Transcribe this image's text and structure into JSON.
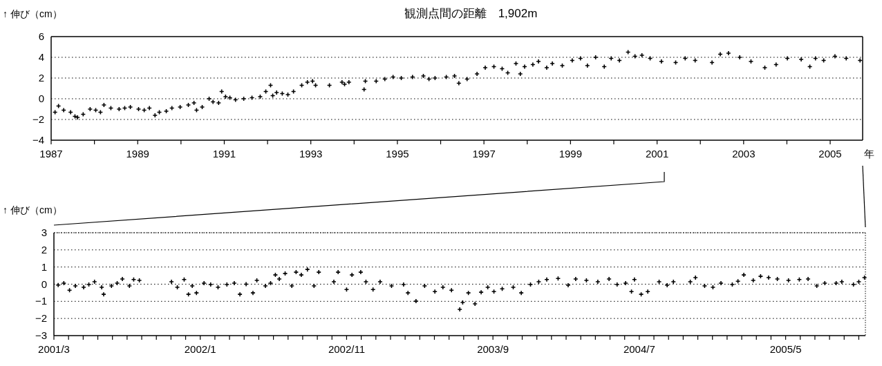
{
  "chart_data": [
    {
      "type": "scatter",
      "title": "観測点間の距離　1,902m",
      "ylabel": "↑ 伸び（cm）",
      "xlabel": "年",
      "marker": "cross",
      "grid": "y",
      "xlim": [
        1987,
        2005.75
      ],
      "ylim": [
        -4,
        6
      ],
      "yticks": [
        -4,
        -2,
        0,
        2,
        4,
        6
      ],
      "xticks": [
        1987,
        {
          "value": 1988,
          "label": null
        },
        1989,
        {
          "value": 1990,
          "label": null
        },
        1991,
        {
          "value": 1992,
          "label": null
        },
        1993,
        {
          "value": 1994,
          "label": null
        },
        1995,
        {
          "value": 1996,
          "label": null
        },
        1997,
        {
          "value": 1998,
          "label": null
        },
        1999,
        {
          "value": 2000,
          "label": null
        },
        2001,
        {
          "value": 2002,
          "label": null
        },
        2003,
        {
          "value": 2004,
          "label": null
        },
        2005
      ],
      "series": [
        {
          "color": "#000000",
          "x": [
            1987.09,
            1987.17,
            1987.29,
            1987.45,
            1987.55,
            1987.61,
            1987.74,
            1987.9,
            1988.03,
            1988.14,
            1988.22,
            1988.38,
            1988.57,
            1988.7,
            1988.83,
            1989.02,
            1989.15,
            1989.27,
            1989.4,
            1989.5,
            1989.66,
            1989.79,
            1989.98,
            1990.17,
            1990.3,
            1990.36,
            1990.49,
            1990.65,
            1990.74,
            1990.87,
            1990.94,
            1991.03,
            1991.13,
            1991.26,
            1991.45,
            1991.64,
            1991.83,
            1991.96,
            1992.07,
            1992.12,
            1992.21,
            1992.34,
            1992.47,
            1992.6,
            1992.79,
            1992.92,
            1993.04,
            1993.11,
            1993.43,
            1993.72,
            1993.78,
            1993.88,
            1994.23,
            1994.26,
            1994.51,
            1994.71,
            1994.9,
            1995.09,
            1995.35,
            1995.6,
            1995.73,
            1995.87,
            1996.13,
            1996.32,
            1996.42,
            1996.61,
            1996.84,
            1997.03,
            1997.23,
            1997.42,
            1997.55,
            1997.74,
            1997.84,
            1997.94,
            1998.13,
            1998.26,
            1998.45,
            1998.58,
            1998.81,
            1999.04,
            1999.23,
            1999.39,
            1999.58,
            1999.78,
            1999.94,
            2000.13,
            2000.33,
            2000.49,
            2000.65,
            2000.84,
            2001.1,
            2001.43,
            2001.65,
            2001.88,
            2002.27,
            2002.46,
            2002.65,
            2002.91,
            2003.17,
            2003.49,
            2003.75,
            2004.01,
            2004.33,
            2004.53,
            2004.66,
            2004.85,
            2005.11,
            2005.37,
            2005.69
          ],
          "values": [
            -1.3,
            -0.7,
            -1.1,
            -1.3,
            -1.7,
            -1.8,
            -1.5,
            -1.0,
            -1.1,
            -1.3,
            -0.6,
            -0.9,
            -1.0,
            -0.9,
            -0.8,
            -1.0,
            -1.1,
            -0.9,
            -1.6,
            -1.3,
            -1.2,
            -0.9,
            -0.8,
            -0.6,
            -0.4,
            -1.1,
            -0.8,
            0.0,
            -0.3,
            -0.4,
            0.7,
            0.2,
            0.1,
            -0.1,
            0.0,
            0.1,
            0.2,
            0.7,
            1.3,
            0.3,
            0.6,
            0.5,
            0.4,
            0.7,
            1.3,
            1.6,
            1.7,
            1.3,
            1.3,
            1.6,
            1.4,
            1.6,
            0.9,
            1.7,
            1.7,
            1.9,
            2.1,
            2.0,
            2.1,
            2.2,
            1.9,
            2.0,
            2.1,
            2.2,
            1.5,
            1.9,
            2.4,
            3.0,
            3.1,
            2.9,
            2.5,
            3.4,
            2.4,
            3.1,
            3.3,
            3.6,
            3.0,
            3.4,
            3.2,
            3.7,
            3.9,
            3.2,
            4.0,
            3.1,
            3.9,
            3.7,
            4.5,
            4.1,
            4.2,
            3.9,
            3.6,
            3.5,
            3.9,
            3.7,
            3.5,
            4.3,
            4.4,
            4.0,
            3.6,
            3.0,
            3.3,
            3.9,
            3.8,
            3.1,
            3.9,
            3.7,
            4.1,
            3.9,
            3.7
          ]
        }
      ]
    },
    {
      "type": "scatter",
      "ylabel": "↑ 伸び（cm）",
      "marker": "cross",
      "grid": "y",
      "xlim": [
        "2001-03-01",
        "2005-10-15"
      ],
      "ylim": [
        -3,
        3
      ],
      "yticks": [
        -3,
        -2,
        -1,
        0,
        1,
        2,
        3
      ],
      "xticks": [
        {
          "value": "2001-03",
          "label": "2001/3"
        },
        {
          "value": "2001-04",
          "label": null
        },
        {
          "value": "2001-05",
          "label": null
        },
        {
          "value": "2001-06",
          "label": null
        },
        {
          "value": "2001-07",
          "label": null
        },
        {
          "value": "2001-08",
          "label": null
        },
        {
          "value": "2001-09",
          "label": null
        },
        {
          "value": "2001-10",
          "label": null
        },
        {
          "value": "2001-11",
          "label": null
        },
        {
          "value": "2001-12",
          "label": null
        },
        {
          "value": "2002-01",
          "label": "2002/1"
        },
        {
          "value": "2002-02",
          "label": null
        },
        {
          "value": "2002-03",
          "label": null
        },
        {
          "value": "2002-04",
          "label": null
        },
        {
          "value": "2002-05",
          "label": null
        },
        {
          "value": "2002-06",
          "label": null
        },
        {
          "value": "2002-07",
          "label": null
        },
        {
          "value": "2002-08",
          "label": null
        },
        {
          "value": "2002-09",
          "label": null
        },
        {
          "value": "2002-10",
          "label": null
        },
        {
          "value": "2002-11",
          "label": "2002/11"
        },
        {
          "value": "2002-12",
          "label": null
        },
        {
          "value": "2003-01",
          "label": null
        },
        {
          "value": "2003-02",
          "label": null
        },
        {
          "value": "2003-03",
          "label": null
        },
        {
          "value": "2003-04",
          "label": null
        },
        {
          "value": "2003-05",
          "label": null
        },
        {
          "value": "2003-06",
          "label": null
        },
        {
          "value": "2003-07",
          "label": null
        },
        {
          "value": "2003-08",
          "label": null
        },
        {
          "value": "2003-09",
          "label": "2003/9"
        },
        {
          "value": "2003-10",
          "label": null
        },
        {
          "value": "2003-11",
          "label": null
        },
        {
          "value": "2003-12",
          "label": null
        },
        {
          "value": "2004-01",
          "label": null
        },
        {
          "value": "2004-02",
          "label": null
        },
        {
          "value": "2004-03",
          "label": null
        },
        {
          "value": "2004-04",
          "label": null
        },
        {
          "value": "2004-05",
          "label": null
        },
        {
          "value": "2004-06",
          "label": null
        },
        {
          "value": "2004-07",
          "label": "2004/7"
        },
        {
          "value": "2004-08",
          "label": null
        },
        {
          "value": "2004-09",
          "label": null
        },
        {
          "value": "2004-10",
          "label": null
        },
        {
          "value": "2004-11",
          "label": null
        },
        {
          "value": "2004-12",
          "label": null
        },
        {
          "value": "2005-01",
          "label": null
        },
        {
          "value": "2005-02",
          "label": null
        },
        {
          "value": "2005-03",
          "label": null
        },
        {
          "value": "2005-04",
          "label": null
        },
        {
          "value": "2005-05",
          "label": "2005/5"
        },
        {
          "value": "2005-06",
          "label": null
        },
        {
          "value": "2005-07",
          "label": null
        },
        {
          "value": "2005-08",
          "label": null
        },
        {
          "value": "2005-09",
          "label": null
        },
        {
          "value": "2005-10",
          "label": null
        }
      ],
      "series": [
        {
          "color": "#000000",
          "x": [
            "2001-03-10",
            "2001-03-22",
            "2001-04-03",
            "2001-04-15",
            "2001-05-02",
            "2001-05-13",
            "2001-05-25",
            "2001-06-09",
            "2001-06-13",
            "2001-06-29",
            "2001-07-11",
            "2001-07-22",
            "2001-08-06",
            "2001-08-15",
            "2001-08-27",
            "2001-11-02",
            "2001-11-14",
            "2001-11-28",
            "2001-12-07",
            "2001-12-15",
            "2001-12-24",
            "2002-01-09",
            "2002-01-23",
            "2002-02-07",
            "2002-02-24",
            "2002-03-11",
            "2002-03-23",
            "2002-04-05",
            "2002-04-19",
            "2002-04-27",
            "2002-05-15",
            "2002-05-26",
            "2002-06-05",
            "2002-06-13",
            "2002-06-25",
            "2002-07-09",
            "2002-07-18",
            "2002-07-29",
            "2002-08-11",
            "2002-08-25",
            "2002-09-04",
            "2002-10-05",
            "2002-10-14",
            "2002-11-01",
            "2002-11-12",
            "2002-11-30",
            "2002-12-11",
            "2002-12-26",
            "2003-01-10",
            "2003-02-03",
            "2003-02-26",
            "2003-03-07",
            "2003-03-24",
            "2003-04-11",
            "2003-05-02",
            "2003-05-19",
            "2003-06-06",
            "2003-06-23",
            "2003-06-29",
            "2003-07-11",
            "2003-07-25",
            "2003-08-07",
            "2003-08-21",
            "2003-09-03",
            "2003-09-20",
            "2003-10-13",
            "2003-10-30",
            "2003-11-18",
            "2003-12-05",
            "2003-12-22",
            "2004-01-15",
            "2004-02-05",
            "2004-02-20",
            "2004-03-13",
            "2004-04-06",
            "2004-04-29",
            "2004-05-16",
            "2004-06-03",
            "2004-06-15",
            "2004-06-21",
            "2004-07-05",
            "2004-07-19",
            "2004-08-12",
            "2004-08-29",
            "2004-09-11",
            "2004-10-16",
            "2004-10-27",
            "2004-11-15",
            "2004-12-02",
            "2004-12-19",
            "2005-01-12",
            "2005-01-24",
            "2005-02-05",
            "2005-02-23",
            "2005-03-10",
            "2005-03-27",
            "2005-04-14",
            "2005-05-07",
            "2005-05-30",
            "2005-06-17",
            "2005-07-05",
            "2005-07-22",
            "2005-08-15",
            "2005-08-27",
            "2005-09-20",
            "2005-10-01",
            "2005-10-13"
          ],
          "values": [
            -0.05,
            0.06,
            -0.35,
            -0.1,
            -0.18,
            -0.02,
            0.14,
            -0.18,
            -0.59,
            -0.1,
            0.06,
            0.3,
            -0.1,
            0.27,
            0.22,
            0.14,
            -0.18,
            0.27,
            -0.59,
            -0.1,
            -0.51,
            0.06,
            -0.02,
            -0.18,
            -0.02,
            0.06,
            -0.59,
            0.0,
            -0.51,
            0.22,
            -0.1,
            0.06,
            0.54,
            0.3,
            0.62,
            -0.1,
            0.7,
            0.54,
            0.86,
            -0.1,
            0.7,
            0.14,
            0.7,
            -0.31,
            0.54,
            0.7,
            0.14,
            -0.31,
            0.14,
            -0.1,
            -0.02,
            -0.51,
            -0.99,
            -0.1,
            -0.43,
            -0.18,
            -0.35,
            -1.47,
            -1.07,
            -0.51,
            -1.15,
            -0.47,
            -0.18,
            -0.43,
            -0.27,
            -0.18,
            -0.51,
            -0.02,
            0.14,
            0.27,
            0.33,
            -0.06,
            0.3,
            0.22,
            0.14,
            0.3,
            -0.02,
            0.06,
            -0.43,
            0.27,
            -0.59,
            -0.43,
            0.14,
            -0.06,
            0.14,
            0.14,
            0.38,
            -0.1,
            -0.18,
            0.06,
            -0.02,
            0.17,
            0.54,
            0.22,
            0.46,
            0.38,
            0.3,
            0.22,
            0.27,
            0.3,
            -0.1,
            0.06,
            0.06,
            0.14,
            -0.02,
            0.14,
            0.38
          ]
        }
      ]
    }
  ]
}
